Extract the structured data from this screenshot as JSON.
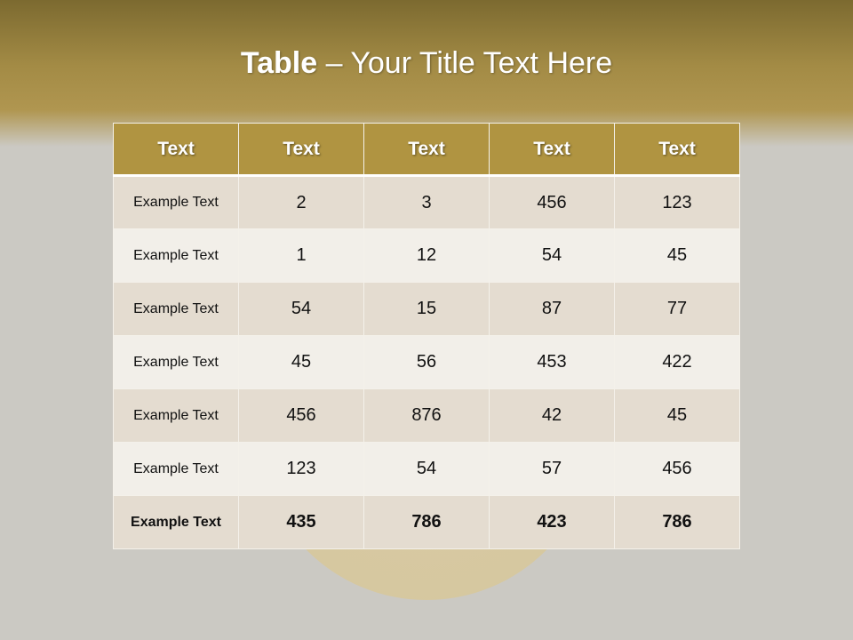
{
  "title": {
    "bold": "Table",
    "rest": " – Your Title Text Here"
  },
  "table": {
    "headers": [
      "Text",
      "Text",
      "Text",
      "Text",
      "Text"
    ],
    "rows": [
      [
        "Example Text",
        "2",
        "3",
        "456",
        "123"
      ],
      [
        "Example Text",
        "1",
        "12",
        "54",
        "45"
      ],
      [
        "Example Text",
        "54",
        "15",
        "87",
        "77"
      ],
      [
        "Example Text",
        "45",
        "56",
        "453",
        "422"
      ],
      [
        "Example Text",
        "456",
        "876",
        "42",
        "45"
      ],
      [
        "Example Text",
        "123",
        "54",
        "57",
        "456"
      ],
      [
        "Example Text",
        "435",
        "786",
        "423",
        "786"
      ]
    ]
  },
  "colors": {
    "header": "#b09441",
    "row_dark": "#e4dcd0",
    "row_light": "#f2efe9",
    "band": "#a38b45"
  }
}
